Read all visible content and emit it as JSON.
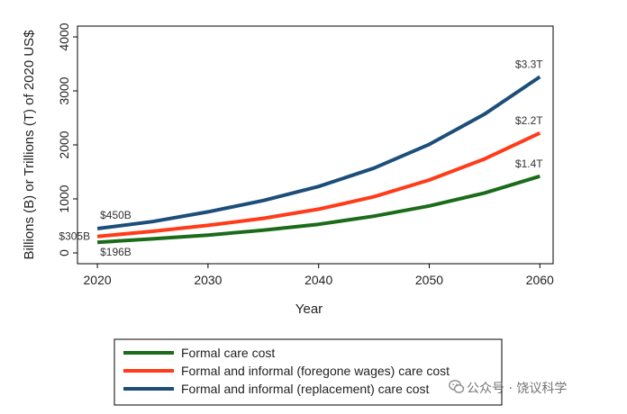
{
  "chart_data": {
    "type": "line",
    "title": "",
    "xlabel": "Year",
    "ylabel": "Billions (B) or Trillions (T) of 2020 US$",
    "x": [
      2020,
      2025,
      2030,
      2035,
      2040,
      2045,
      2050,
      2055,
      2060
    ],
    "xlim": [
      2018.2,
      2061.2
    ],
    "ylim": [
      -200,
      4200
    ],
    "xticks": [
      2020,
      2030,
      2040,
      2050,
      2060
    ],
    "yticks": [
      0,
      1000,
      2000,
      3000,
      4000
    ],
    "grid": false,
    "legend_position": "bottom",
    "series": [
      {
        "name": "Formal care cost",
        "color": "#1a6b1a",
        "values": [
          196,
          260,
          330,
          420,
          530,
          680,
          870,
          1110,
          1420
        ],
        "start_label": "$196B",
        "end_label": "$1.4T"
      },
      {
        "name": "Formal and informal (foregone wages) care cost",
        "color": "#ff3b19",
        "values": [
          305,
          400,
          510,
          640,
          810,
          1040,
          1350,
          1740,
          2220
        ],
        "start_label": "$305B",
        "end_label": "$2.2T"
      },
      {
        "name": "Formal and informal (replacement) care cost",
        "color": "#1d4e79",
        "values": [
          450,
          580,
          760,
          970,
          1230,
          1570,
          2010,
          2570,
          3260
        ],
        "start_label": "$450B",
        "end_label": "$3.3T"
      }
    ]
  },
  "watermark": {
    "text": "公众号 · 饶议科学",
    "icon": "wechat-icon"
  }
}
